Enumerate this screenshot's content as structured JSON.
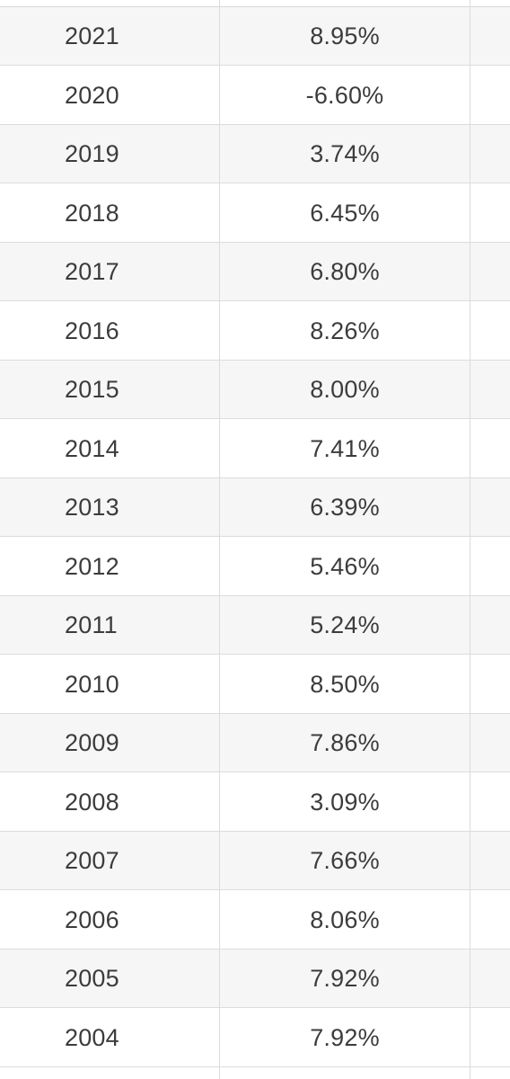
{
  "table": {
    "rows": [
      {
        "year": "2021",
        "rate": "8.95%"
      },
      {
        "year": "2020",
        "rate": "-6.60%"
      },
      {
        "year": "2019",
        "rate": "3.74%"
      },
      {
        "year": "2018",
        "rate": "6.45%"
      },
      {
        "year": "2017",
        "rate": "6.80%"
      },
      {
        "year": "2016",
        "rate": "8.26%"
      },
      {
        "year": "2015",
        "rate": "8.00%"
      },
      {
        "year": "2014",
        "rate": "7.41%"
      },
      {
        "year": "2013",
        "rate": "6.39%"
      },
      {
        "year": "2012",
        "rate": "5.46%"
      },
      {
        "year": "2011",
        "rate": "5.24%"
      },
      {
        "year": "2010",
        "rate": "8.50%"
      },
      {
        "year": "2009",
        "rate": "7.86%"
      },
      {
        "year": "2008",
        "rate": "3.09%"
      },
      {
        "year": "2007",
        "rate": "7.66%"
      },
      {
        "year": "2006",
        "rate": "8.06%"
      },
      {
        "year": "2005",
        "rate": "7.92%"
      },
      {
        "year": "2004",
        "rate": "7.92%"
      }
    ]
  },
  "colors": {
    "row_alt": "#f6f6f6",
    "row_base": "#ffffff",
    "grid_line": "#dcdcdc",
    "text": "#3c3c3c"
  }
}
